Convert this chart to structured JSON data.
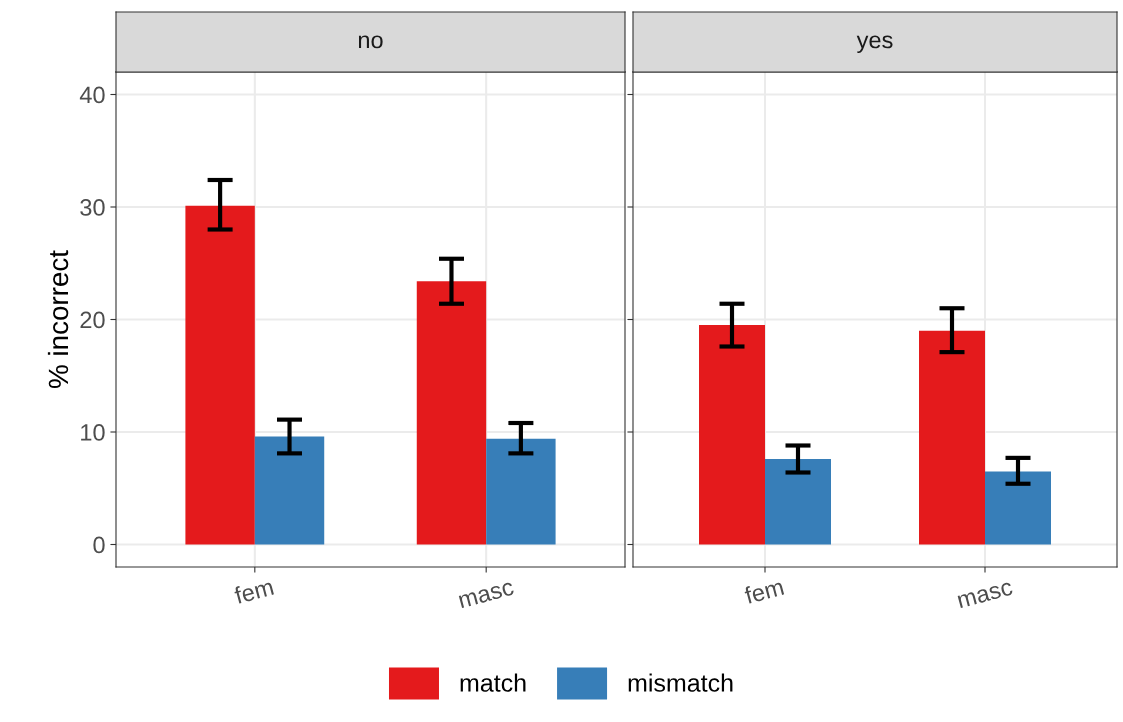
{
  "chart_data": [
    {
      "type": "bar",
      "title": "no",
      "ylabel": "% incorrect",
      "categories": [
        "fem",
        "masc"
      ],
      "ylim": [
        -2,
        42
      ],
      "yticks": [
        0,
        10,
        20,
        30,
        40
      ],
      "grid": true,
      "legend": "bottom",
      "series": [
        {
          "name": "match",
          "color": "#e41a1c",
          "values": [
            30.1,
            23.4
          ],
          "errors": [
            [
              28.0,
              32.4
            ],
            [
              21.4,
              25.4
            ]
          ]
        },
        {
          "name": "mismatch",
          "color": "#377eb8",
          "values": [
            9.6,
            9.4
          ],
          "errors": [
            [
              8.1,
              11.1
            ],
            [
              8.1,
              10.8
            ]
          ]
        }
      ]
    },
    {
      "type": "bar",
      "title": "yes",
      "categories": [
        "fem",
        "masc"
      ],
      "ylim": [
        -2,
        42
      ],
      "yticks": [
        0,
        10,
        20,
        30,
        40
      ],
      "grid": true,
      "legend": "bottom",
      "tick_labels": "x",
      "series": [
        {
          "name": "match",
          "color": "#e41a1c",
          "values": [
            19.5,
            19.0
          ],
          "errors": [
            [
              17.6,
              21.4
            ],
            [
              17.1,
              21.0
            ]
          ]
        },
        {
          "name": "mismatch",
          "color": "#377eb8",
          "values": [
            7.6,
            6.5
          ],
          "errors": [
            [
              6.4,
              8.8
            ],
            [
              5.4,
              7.7
            ]
          ]
        }
      ]
    }
  ]
}
